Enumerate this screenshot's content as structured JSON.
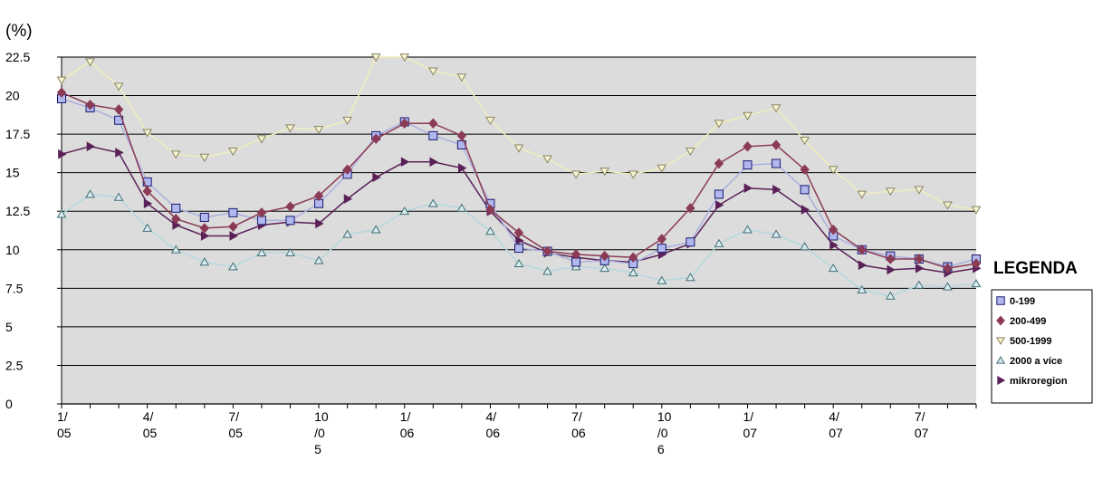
{
  "chart_data": {
    "type": "line",
    "ylabel": "(%)",
    "ylim": [
      0,
      22.5
    ],
    "yticks": [
      "0",
      "2.5",
      "5",
      "7.5",
      "10",
      "12.5",
      "15",
      "17.5",
      "20",
      "22.5"
    ],
    "xtick_labels": [
      {
        "index": 0,
        "lines": [
          "1/",
          "05"
        ]
      },
      {
        "index": 3,
        "lines": [
          "4/",
          "05"
        ]
      },
      {
        "index": 6,
        "lines": [
          "7/",
          "05"
        ]
      },
      {
        "index": 9,
        "lines": [
          "10",
          "/0",
          "5"
        ]
      },
      {
        "index": 12,
        "lines": [
          "1/",
          "06"
        ]
      },
      {
        "index": 15,
        "lines": [
          "4/",
          "06"
        ]
      },
      {
        "index": 18,
        "lines": [
          "7/",
          "06"
        ]
      },
      {
        "index": 21,
        "lines": [
          "10",
          "/0",
          "6"
        ]
      },
      {
        "index": 24,
        "lines": [
          "1/",
          "07"
        ]
      },
      {
        "index": 27,
        "lines": [
          "4/",
          "07"
        ]
      },
      {
        "index": 30,
        "lines": [
          "7/",
          "07"
        ]
      }
    ],
    "n_points": 33,
    "grid": true,
    "legend_title": "LEGENDA",
    "legend_position": "right",
    "series": [
      {
        "name": "0-199",
        "marker": "square",
        "color": "#aab0e0",
        "marker_fill": "#b0b8ee",
        "marker_stroke": "#1a1a6e",
        "values": [
          19.8,
          19.2,
          18.4,
          14.4,
          12.7,
          12.1,
          12.4,
          11.9,
          11.9,
          13.0,
          14.9,
          17.4,
          18.3,
          17.4,
          16.8,
          13.0,
          10.1,
          9.9,
          9.2,
          9.3,
          9.1,
          10.1,
          10.5,
          13.6,
          15.5,
          15.6,
          13.9,
          10.9,
          10.0,
          9.6,
          9.4,
          8.9,
          9.4
        ]
      },
      {
        "name": "200-499",
        "marker": "diamond",
        "color": "#8b3b55",
        "marker_fill": "#8b3b55",
        "marker_stroke": "#8b3b55",
        "values": [
          20.2,
          19.4,
          19.1,
          13.8,
          12.0,
          11.4,
          11.5,
          12.4,
          12.8,
          13.5,
          15.2,
          17.2,
          18.2,
          18.2,
          17.4,
          12.6,
          11.1,
          9.9,
          9.7,
          9.6,
          9.5,
          10.7,
          12.7,
          15.6,
          16.7,
          16.8,
          15.2,
          11.3,
          10.0,
          9.4,
          9.4,
          8.8,
          9.1
        ]
      },
      {
        "name": "500-1999",
        "marker": "triangle-down",
        "color": "#f0eebb",
        "marker_fill": "#f6f4d2",
        "marker_stroke": "#8a8460",
        "values": [
          21.0,
          22.2,
          20.6,
          17.6,
          16.2,
          16.0,
          16.4,
          17.2,
          17.9,
          17.8,
          18.4,
          22.5,
          22.5,
          21.6,
          21.2,
          18.4,
          16.6,
          15.9,
          14.9,
          15.1,
          14.9,
          15.3,
          16.4,
          18.2,
          18.7,
          19.2,
          17.1,
          15.2,
          13.6,
          13.8,
          13.9,
          12.9,
          12.6
        ]
      },
      {
        "name": "2000 a více",
        "marker": "triangle-up",
        "color": "#b4d8dd",
        "marker_fill": "#dcecee",
        "marker_stroke": "#3f6f78",
        "values": [
          12.3,
          13.6,
          13.4,
          11.4,
          10.0,
          9.2,
          8.9,
          9.8,
          9.8,
          9.3,
          11.0,
          11.3,
          12.5,
          13.0,
          12.7,
          11.2,
          9.1,
          8.6,
          8.9,
          8.8,
          8.5,
          8.0,
          8.2,
          10.4,
          11.3,
          11.0,
          10.2,
          8.8,
          7.4,
          7.0,
          7.7,
          7.6,
          7.8
        ]
      },
      {
        "name": "mikroregion",
        "marker": "triangle-right",
        "color": "#5a2158",
        "marker_fill": "#5a2158",
        "marker_stroke": "#5a2158",
        "values": [
          16.2,
          16.7,
          16.3,
          13.0,
          11.6,
          10.9,
          10.9,
          11.6,
          11.8,
          11.7,
          13.3,
          14.7,
          15.7,
          15.7,
          15.3,
          12.5,
          10.6,
          9.8,
          9.5,
          9.3,
          9.2,
          9.7,
          10.4,
          12.9,
          14.0,
          13.9,
          12.6,
          10.3,
          9.0,
          8.7,
          8.8,
          8.5,
          8.8
        ]
      }
    ]
  }
}
